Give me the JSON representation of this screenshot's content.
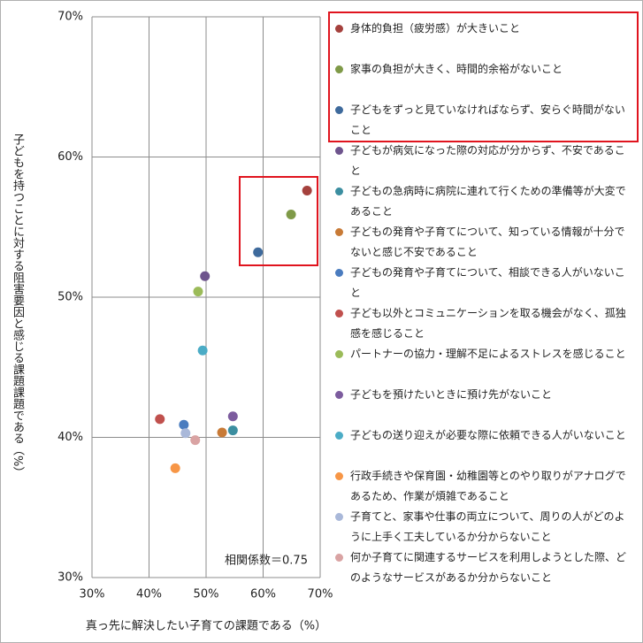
{
  "chart_data": {
    "type": "scatter",
    "xlabel": "真っ先に解決したい子育ての課題である（%）",
    "ylabel": "子どもを持つことに対する阻害要因と感じる課題課題である（%）",
    "annotation": "相関係数＝0.75",
    "xlim": [
      30,
      70
    ],
    "ylim": [
      30,
      70
    ],
    "xticks": [
      {
        "value": 30,
        "label": "30%"
      },
      {
        "value": 40,
        "label": "40%"
      },
      {
        "value": 50,
        "label": "50%"
      },
      {
        "value": 60,
        "label": "60%"
      },
      {
        "value": 70,
        "label": "70%"
      }
    ],
    "yticks": [
      {
        "value": 30,
        "label": "30%"
      },
      {
        "value": 40,
        "label": "40%"
      },
      {
        "value": 50,
        "label": "50%"
      },
      {
        "value": 60,
        "label": "60%"
      },
      {
        "value": 70,
        "label": "70%"
      }
    ],
    "grid": true,
    "series": [
      {
        "name": "身体的負担（疲労感）が大きいこと",
        "color": "#a5413d",
        "x": [
          67.7
        ],
        "values": [
          57.6
        ]
      },
      {
        "name": "家事の負担が大きく、時間的余裕がないこと",
        "color": "#7f9a48",
        "x": [
          64.9
        ],
        "values": [
          55.9
        ]
      },
      {
        "name": "子どもをずっと見ていなければならず、安らぐ時間がないこと",
        "color": "#3e6a9c",
        "x": [
          59.1
        ],
        "values": [
          53.2
        ]
      },
      {
        "name": "子どもが病気になった際の対応が分からず、不安であること",
        "color": "#6e548d",
        "x": [
          49.8
        ],
        "values": [
          51.5
        ]
      },
      {
        "name": "子どもの急病時に病院に連れて行くための準備等が大変であること",
        "color": "#3b8ea0",
        "x": [
          54.7
        ],
        "values": [
          40.5
        ]
      },
      {
        "name": "子どもの発育や子育てについて、知っている情報が十分でないと感じ不安であること",
        "color": "#c87a36",
        "x": [
          52.8
        ],
        "values": [
          40.35
        ]
      },
      {
        "name": "子どもの発育や子育てについて、相談できる人がいないこと",
        "color": "#4a7cbf",
        "x": [
          46.1
        ],
        "values": [
          40.9
        ]
      },
      {
        "name": "子ども以外とコミュニケーションを取る機会がなく、孤独感を感じること",
        "color": "#c0504d",
        "x": [
          41.9
        ],
        "values": [
          41.3
        ]
      },
      {
        "name": "パートナーの協力・理解不足によるストレスを感じること",
        "color": "#9bbb59",
        "x": [
          48.6
        ],
        "values": [
          50.4
        ]
      },
      {
        "name": "子どもを預けたいときに預け先がないこと",
        "color": "#7c5c9e",
        "x": [
          54.7
        ],
        "values": [
          41.5
        ]
      },
      {
        "name": "子どもの送り迎えが必要な際に依頼できる人がいないこと",
        "color": "#4bacc6",
        "x": [
          49.4
        ],
        "values": [
          46.2
        ]
      },
      {
        "name": "行政手続きや保育園・幼稚園等とのやり取りがアナログであるため、作業が煩雑であること",
        "color": "#f79646",
        "x": [
          44.6
        ],
        "values": [
          37.8
        ]
      },
      {
        "name": "子育てと、家事や仕事の両立について、周りの人がどのように上手く工夫しているか分からないこと",
        "color": "#a9b8d9",
        "x": [
          46.4
        ],
        "values": [
          40.3
        ]
      },
      {
        "name": "何か子育てに関連するサービスを利用しようとした際、どのようなサービスがあるか分からないこと",
        "color": "#d9a3a3",
        "x": [
          48.1
        ],
        "values": [
          39.8
        ]
      }
    ]
  }
}
